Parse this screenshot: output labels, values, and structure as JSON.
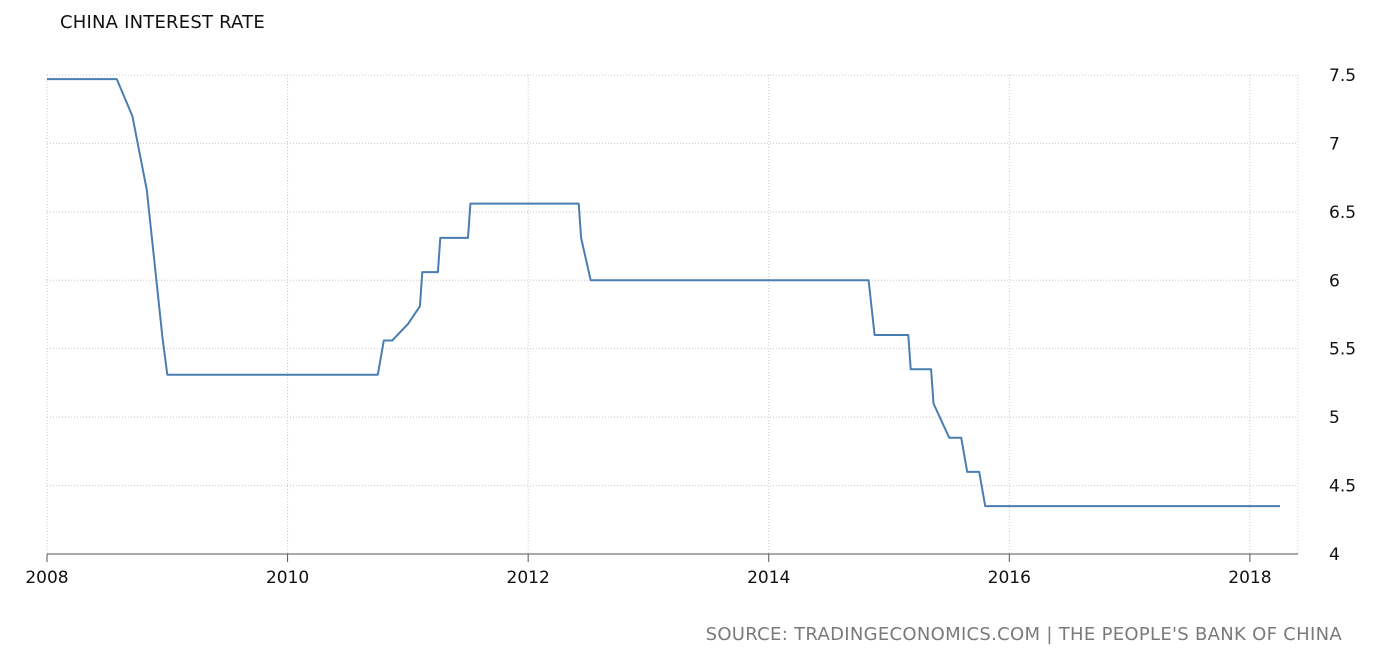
{
  "chart_data": {
    "type": "line",
    "title": "CHINA INTEREST RATE",
    "xlabel": "",
    "ylabel": "",
    "xlim": [
      2008,
      2018.4
    ],
    "ylim": [
      4,
      7.5
    ],
    "x_ticks": [
      "2008",
      "2010",
      "2012",
      "2014",
      "2016",
      "2018"
    ],
    "y_ticks": [
      "4",
      "4.5",
      "5",
      "5.5",
      "6",
      "6.5",
      "7",
      "7.5"
    ],
    "grid": true,
    "series": [
      {
        "color": "#4a7eb2",
        "points": [
          [
            2008.0,
            7.47
          ],
          [
            2008.58,
            7.47
          ],
          [
            2008.71,
            7.2
          ],
          [
            2008.83,
            6.66
          ],
          [
            2008.96,
            5.58
          ],
          [
            2009.0,
            5.31
          ],
          [
            2010.75,
            5.31
          ],
          [
            2010.8,
            5.56
          ],
          [
            2010.87,
            5.56
          ],
          [
            2011.0,
            5.68
          ],
          [
            2011.1,
            5.81
          ],
          [
            2011.12,
            6.06
          ],
          [
            2011.25,
            6.06
          ],
          [
            2011.27,
            6.31
          ],
          [
            2011.5,
            6.31
          ],
          [
            2011.52,
            6.56
          ],
          [
            2012.42,
            6.56
          ],
          [
            2012.44,
            6.31
          ],
          [
            2012.52,
            6.0
          ],
          [
            2014.83,
            6.0
          ],
          [
            2014.88,
            5.6
          ],
          [
            2015.16,
            5.6
          ],
          [
            2015.18,
            5.35
          ],
          [
            2015.35,
            5.35
          ],
          [
            2015.37,
            5.1
          ],
          [
            2015.5,
            4.85
          ],
          [
            2015.6,
            4.85
          ],
          [
            2015.65,
            4.6
          ],
          [
            2015.75,
            4.6
          ],
          [
            2015.8,
            4.35
          ],
          [
            2018.25,
            4.35
          ]
        ]
      }
    ]
  },
  "source": "SOURCE: TRADINGECONOMICS.COM | THE PEOPLE'S BANK OF CHINA"
}
